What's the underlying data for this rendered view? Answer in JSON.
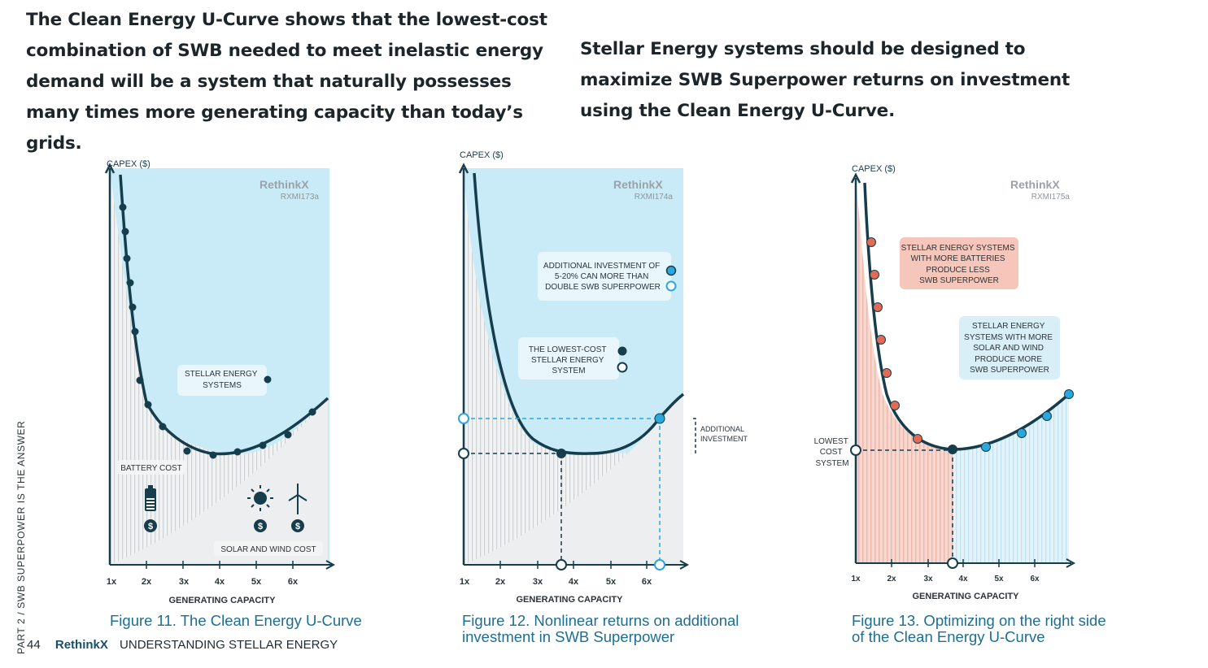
{
  "intro": {
    "left": "The Clean Energy U-Curve shows that the lowest-cost combination of SWB needed to meet inelastic energy demand will be a system that naturally possesses many times more generating capacity than today’s grids.",
    "right": "Stellar Energy systems should be designed to maximize SWB Superpower returns on investment using the Clean Energy U-Curve."
  },
  "sidebar_text": "PART 2 / SWB SUPERPOWER IS THE ANSWER",
  "footer": {
    "page_number": "44",
    "brand": "RethinkX",
    "section": "UNDERSTANDING STELLAR ENERGY"
  },
  "colors": {
    "sky": "#c9ebf8",
    "ink": "#163d4c",
    "accent_blue": "#2aa7dc",
    "accent_red": "#e26b55",
    "caption": "#1d6e92"
  },
  "figures": [
    {
      "caption": "Figure 11. The Clean Energy U-Curve",
      "brand": "RethinkX",
      "code": "RXMI173a",
      "y_label": "CAPEX ($)",
      "x_label": "GENERATING CAPACITY",
      "ticks": [
        "1x",
        "2x",
        "3x",
        "4x",
        "5x",
        "6x"
      ],
      "labels": {
        "stellar": [
          "STELLAR ENERGY",
          "SYSTEMS"
        ],
        "battery": "BATTERY COST",
        "solar_wind": "SOLAR AND WIND COST",
        "dollar": "$"
      },
      "icons": [
        "battery-icon",
        "sun-icon",
        "wind-turbine-icon",
        "dollar-icon"
      ]
    },
    {
      "caption": "Figure 12. Nonlinear returns on additional investment in SWB Superpower",
      "brand": "RethinkX",
      "code": "RXMI174a",
      "y_label": "CAPEX ($)",
      "x_label": "GENERATING CAPACITY",
      "ticks": [
        "1x",
        "2x",
        "3x",
        "4x",
        "5x",
        "6x"
      ],
      "labels": {
        "additional": [
          "ADDITIONAL INVESTMENT OF",
          "5-20% CAN MORE THAN",
          "DOUBLE SWB SUPERPOWER"
        ],
        "lowest": [
          "THE LOWEST-COST",
          "STELLAR ENERGY",
          "SYSTEM"
        ],
        "bracket": [
          "ADDITIONAL",
          "INVESTMENT"
        ]
      }
    },
    {
      "caption": "Figure 13. Optimizing on the right side of the Clean Energy U-Curve",
      "brand": "RethinkX",
      "code": "RXMI175a",
      "y_label": "CAPEX ($)",
      "x_label": "GENERATING CAPACITY",
      "ticks": [
        "1x",
        "2x",
        "3x",
        "4x",
        "5x",
        "6x"
      ],
      "labels": {
        "batteries": [
          "STELLAR ENERGY SYSTEMS",
          "WITH MORE BATTERIES",
          "PRODUCE LESS",
          "SWB SUPERPOWER"
        ],
        "solar": [
          "STELLAR ENERGY",
          "SYSTEMS WITH MORE",
          "SOLAR AND WIND",
          "PRODUCE MORE",
          "SWB SUPERPOWER"
        ],
        "lowest": [
          "LOWEST",
          "COST",
          "SYSTEM"
        ]
      }
    }
  ]
}
